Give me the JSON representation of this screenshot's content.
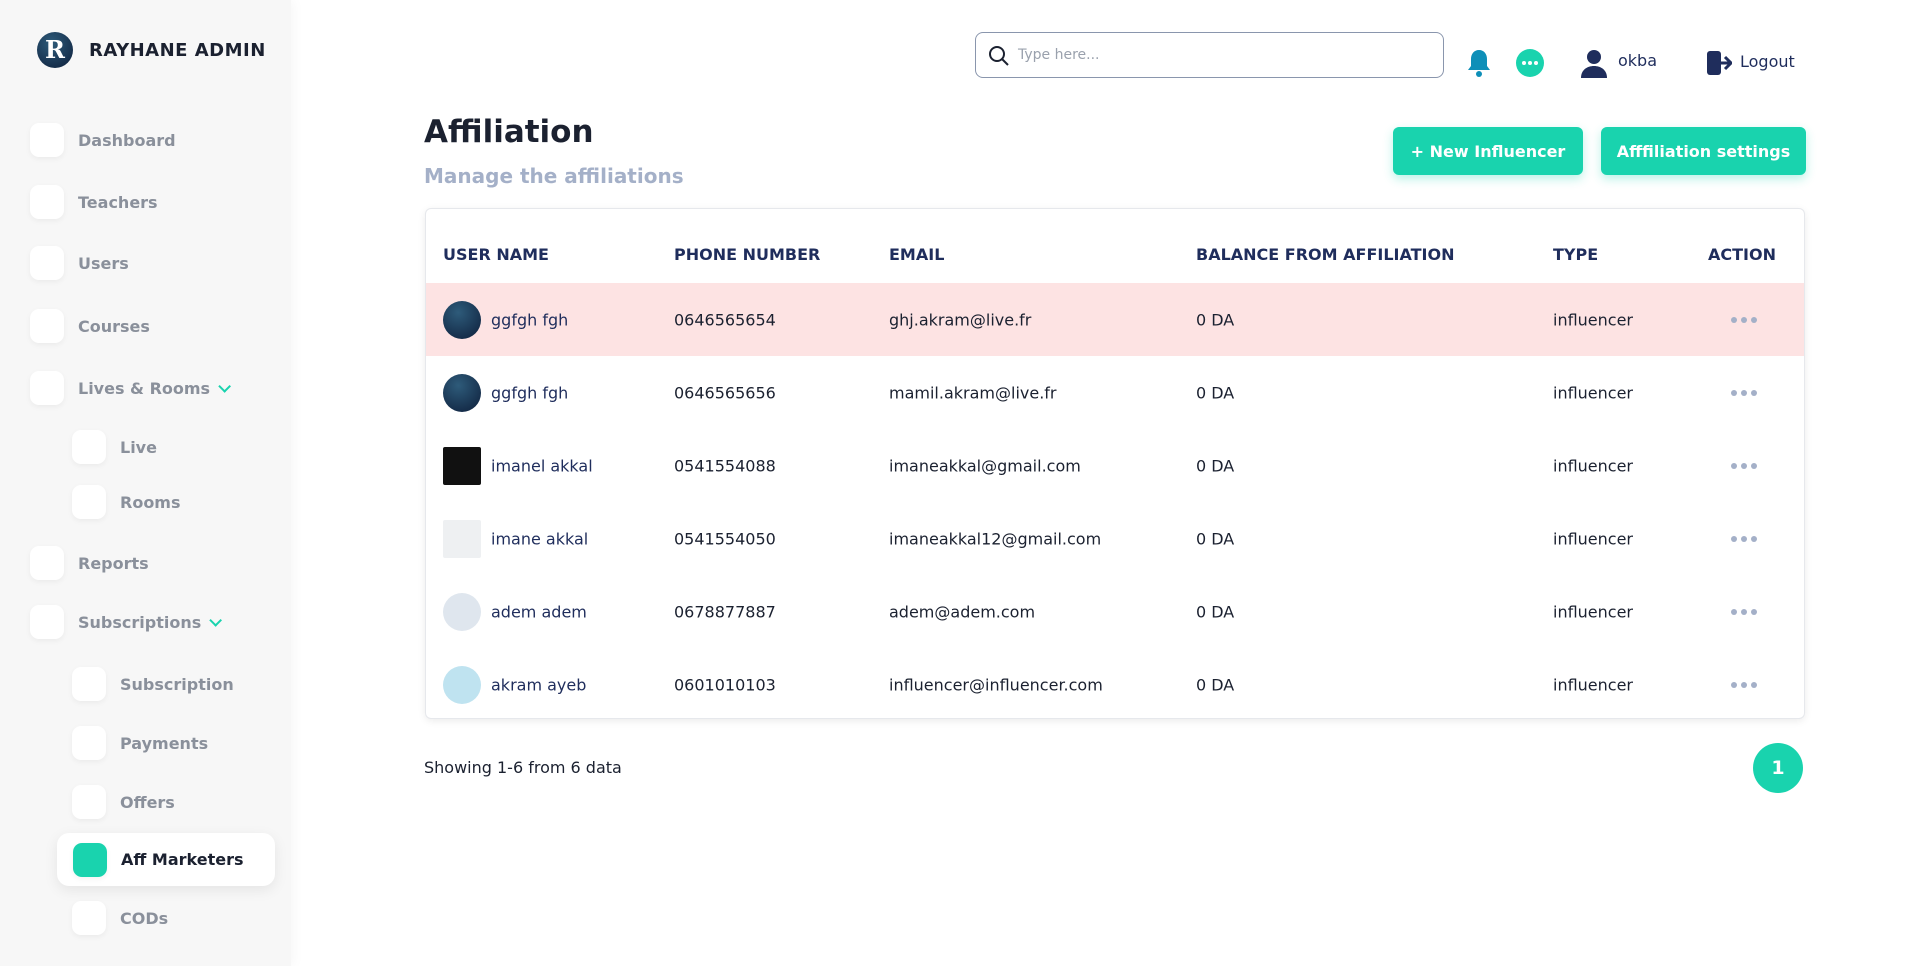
{
  "sidebar": {
    "brand": "RAYHANE ADMIN",
    "menu": [
      {
        "label": "Dashboard",
        "level": 0
      },
      {
        "label": "Teachers",
        "level": 0
      },
      {
        "label": "Users",
        "level": 0
      },
      {
        "label": "Courses",
        "level": 0
      },
      {
        "label": "Lives & Rooms",
        "level": 0,
        "expandable": true
      },
      {
        "label": "Live",
        "level": 1
      },
      {
        "label": "Rooms",
        "level": 1
      },
      {
        "label": "Reports",
        "level": 0
      },
      {
        "label": "Subscriptions",
        "level": 0,
        "expandable": true
      },
      {
        "label": "Subscription",
        "level": 1
      },
      {
        "label": "Payments",
        "level": 1
      },
      {
        "label": "Offers",
        "level": 1
      },
      {
        "label": "Aff Marketers",
        "level": 1,
        "active": true
      },
      {
        "label": "CODs",
        "level": 1
      }
    ]
  },
  "topbar": {
    "search_placeholder": "Type here...",
    "user": "okba",
    "logout": "Logout"
  },
  "header": {
    "title": "Affiliation",
    "subtitle": "Manage the affiliations",
    "buttons": [
      "+ New Influencer",
      "Afffiliation settings"
    ]
  },
  "table": {
    "columns": [
      "USER NAME",
      "PHONE NUMBER",
      "EMAIL",
      "BALANCE FROM AFFILIATION",
      "TYPE",
      "ACTION"
    ],
    "rows": [
      [
        "ggfgh fgh",
        "0646565654",
        "ghj.akram@live.fr",
        "0 DA",
        "influencer"
      ],
      [
        "ggfgh fgh",
        "0646565656",
        "mamil.akram@live.fr",
        "0 DA",
        "influencer"
      ],
      [
        "imanel akkal",
        "0541554088",
        "imaneakkal@gmail.com",
        "0 DA",
        "influencer"
      ],
      [
        "imane akkal",
        "0541554050",
        "imaneakkal12@gmail.com",
        "0 DA",
        "influencer"
      ],
      [
        "adem adem",
        "0678877887",
        "adem@adem.com",
        "0 DA",
        "influencer"
      ],
      [
        "akram ayeb",
        "0601010103",
        "influencer@influencer.com",
        "0 DA",
        "influencer"
      ]
    ]
  },
  "footer": {
    "summary": "Showing 1-6 from 6 data",
    "pages": [
      "1"
    ]
  }
}
